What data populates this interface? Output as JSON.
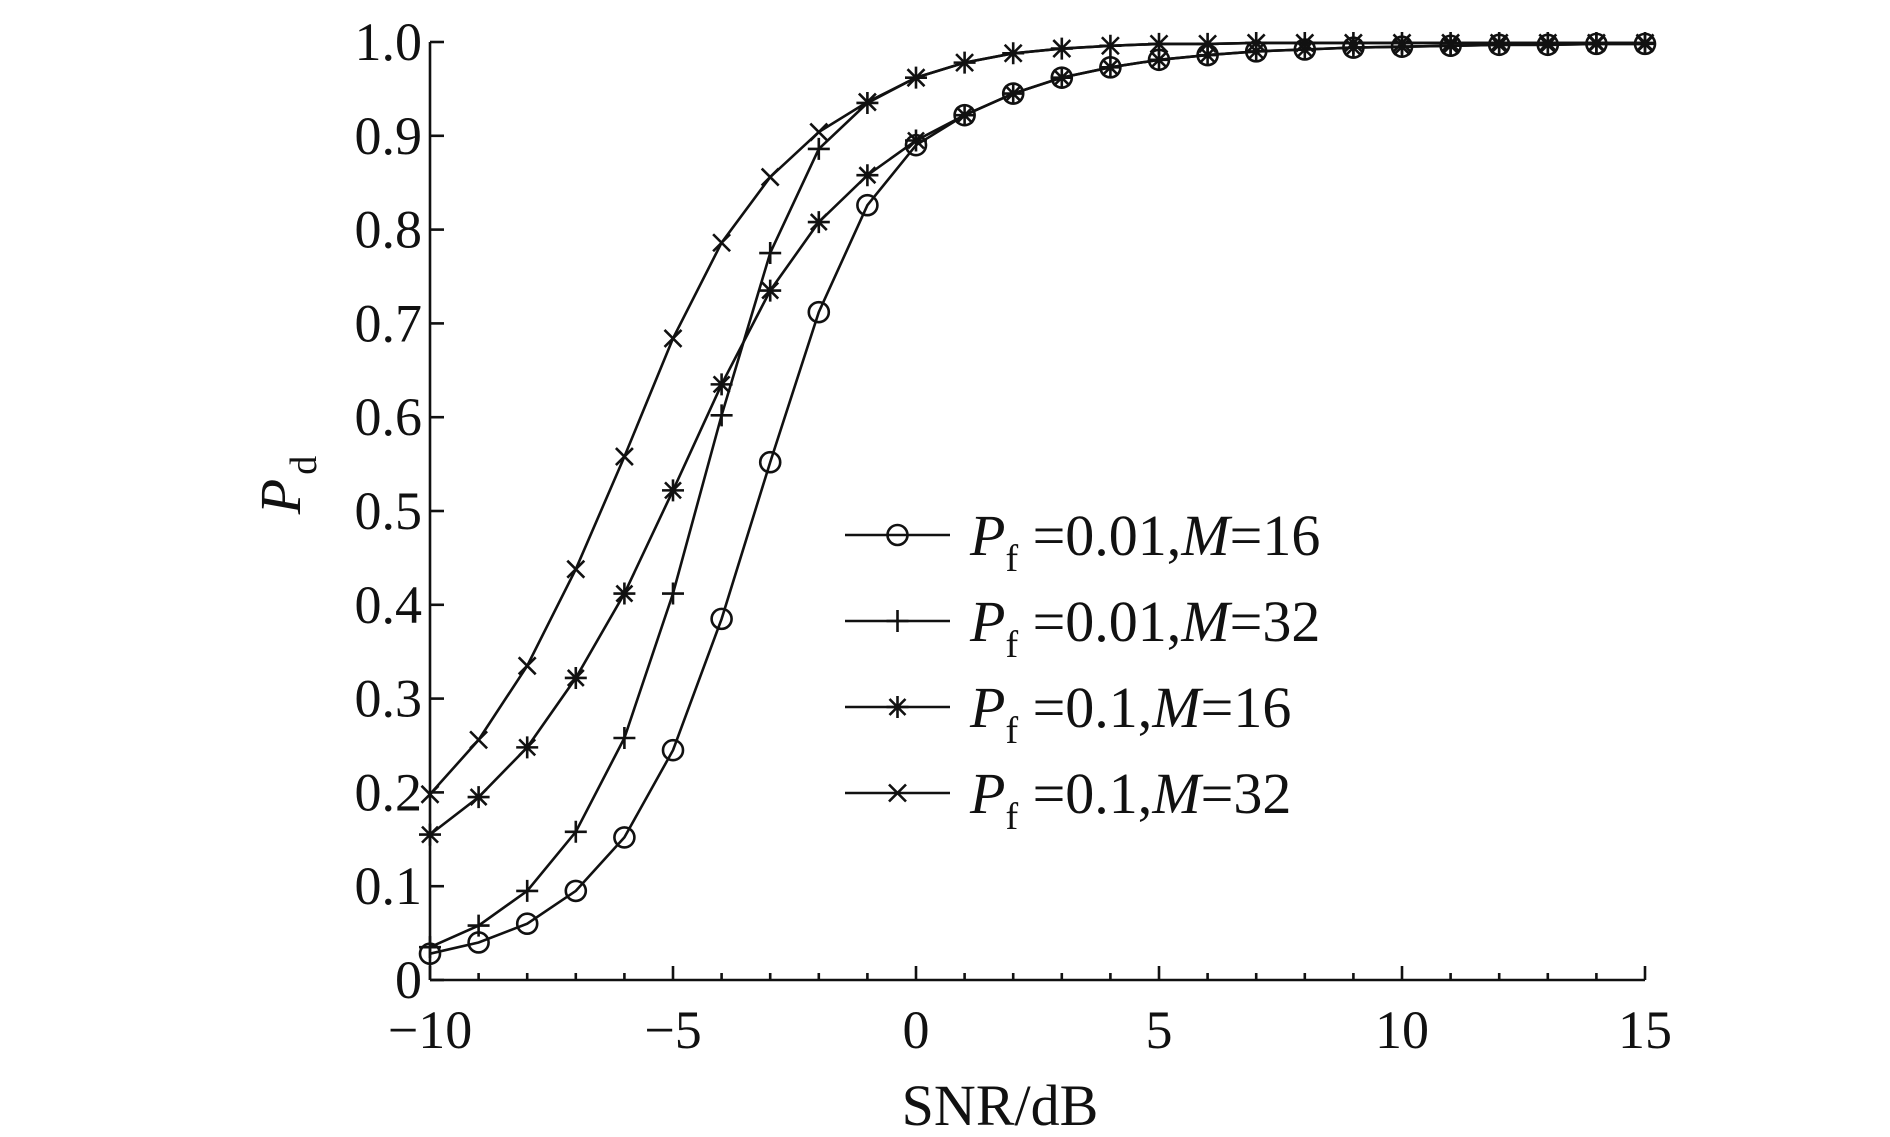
{
  "chart_data": {
    "type": "line",
    "xlabel": "SNR/dB",
    "ylabel": {
      "main": "P",
      "sub": "d"
    },
    "xlim": [
      -10,
      15
    ],
    "ylim": [
      0,
      1.0
    ],
    "x_ticks": [
      -10,
      -5,
      0,
      5,
      10,
      15
    ],
    "x_tick_labels": [
      "−10",
      "−5",
      "0",
      "5",
      "10",
      "15"
    ],
    "y_ticks": [
      0,
      0.1,
      0.2,
      0.3,
      0.4,
      0.5,
      0.6,
      0.7,
      0.8,
      0.9,
      1.0
    ],
    "y_tick_labels": [
      "0",
      "0.1",
      "0.2",
      "0.3",
      "0.4",
      "0.5",
      "0.6",
      "0.7",
      "0.8",
      "0.9",
      "1.0"
    ],
    "grid": false,
    "legend_position": "center-right",
    "x": [
      -10,
      -9,
      -8,
      -7,
      -6,
      -5,
      -4,
      -3,
      -2,
      -1,
      0,
      1,
      2,
      3,
      4,
      5,
      6,
      7,
      8,
      9,
      10,
      11,
      12,
      13,
      14,
      15
    ],
    "series": [
      {
        "name": "Pf =0.01,M=16",
        "legend": {
          "p": "P",
          "sub": "f",
          "eq": " =0.01,",
          "m": "M",
          "val": "=16"
        },
        "marker": "circle",
        "values": [
          0.028,
          0.04,
          0.06,
          0.095,
          0.152,
          0.245,
          0.385,
          0.552,
          0.712,
          0.826,
          0.89,
          0.922,
          0.945,
          0.962,
          0.973,
          0.981,
          0.986,
          0.99,
          0.992,
          0.994,
          0.995,
          0.996,
          0.997,
          0.997,
          0.998,
          0.998
        ]
      },
      {
        "name": "Pf =0.01,M=32",
        "legend": {
          "p": "P",
          "sub": "f",
          "eq": " =0.01,",
          "m": "M",
          "val": "=32"
        },
        "marker": "plus",
        "values": [
          0.035,
          0.058,
          0.095,
          0.158,
          0.258,
          0.412,
          0.602,
          0.775,
          0.886,
          0.935,
          0.962,
          0.978,
          0.988,
          0.993,
          0.996,
          0.998,
          0.998,
          0.999,
          0.999,
          0.999,
          0.999,
          0.999,
          0.999,
          0.999,
          0.999,
          0.999
        ]
      },
      {
        "name": "Pf =0.1,M=16",
        "legend": {
          "p": "P",
          "sub": "f",
          "eq": " =0.1,",
          "m": "M",
          "val": "=16"
        },
        "marker": "asterisk",
        "values": [
          0.155,
          0.195,
          0.248,
          0.322,
          0.412,
          0.522,
          0.635,
          0.735,
          0.808,
          0.858,
          0.895,
          0.922,
          0.945,
          0.962,
          0.973,
          0.981,
          0.986,
          0.99,
          0.992,
          0.994,
          0.995,
          0.996,
          0.997,
          0.997,
          0.998,
          0.998
        ]
      },
      {
        "name": "Pf =0.1,M=32",
        "legend": {
          "p": "P",
          "sub": "f",
          "eq": " =0.1,",
          "m": "M",
          "val": "=32"
        },
        "marker": "cross",
        "values": [
          0.198,
          0.256,
          0.335,
          0.438,
          0.558,
          0.684,
          0.786,
          0.856,
          0.904,
          0.936,
          0.962,
          0.978,
          0.988,
          0.993,
          0.996,
          0.998,
          0.998,
          0.999,
          0.999,
          0.999,
          0.999,
          0.999,
          0.999,
          0.999,
          0.999,
          0.999
        ]
      }
    ]
  }
}
